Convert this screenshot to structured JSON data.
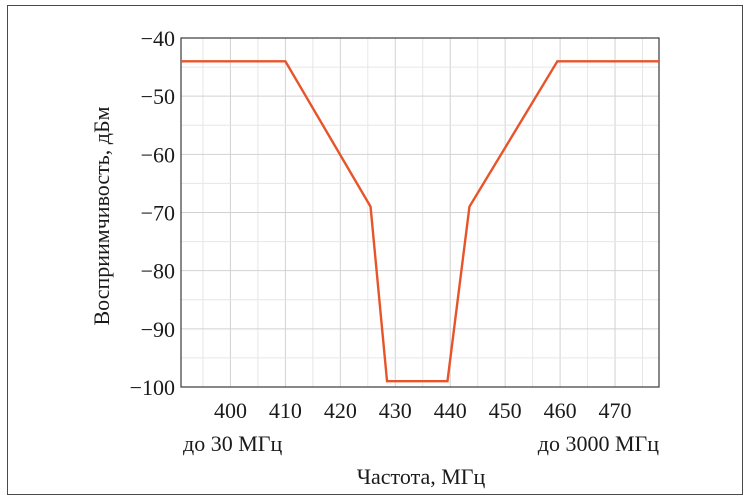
{
  "chart_data": {
    "type": "line",
    "title": "",
    "xlabel": "Частота, МГц",
    "ylabel": "Восприимчивость, дБм",
    "xlim": [
      391,
      478
    ],
    "ylim": [
      -100,
      -40
    ],
    "x_ticks": [
      400,
      410,
      420,
      430,
      440,
      450,
      460,
      470
    ],
    "y_ticks": [
      -40,
      -50,
      -60,
      -70,
      -80,
      -90,
      -100
    ],
    "y_tick_labels": [
      "−40",
      "−50",
      "−60",
      "−70",
      "−80",
      "−90",
      "−100"
    ],
    "x_extra_labels": {
      "left": "до 30 МГц",
      "right": "до 3000 МГц"
    },
    "grid": true,
    "line_color": "#e8542a",
    "series": [
      {
        "x": [
          391,
          410,
          425.5,
          428.5,
          439.5,
          443.5,
          459.5,
          478
        ],
        "y": [
          -44,
          -44,
          -69,
          -99,
          -99,
          -69,
          -44,
          -44
        ]
      }
    ]
  }
}
